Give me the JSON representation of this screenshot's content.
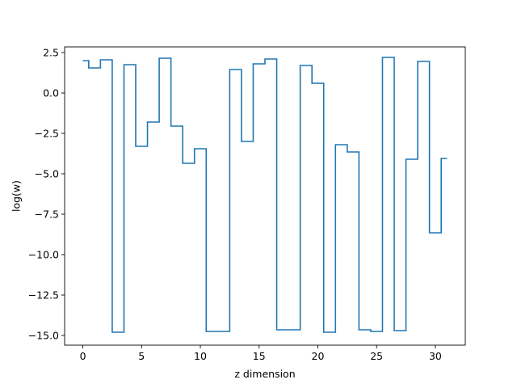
{
  "chart_data": {
    "type": "line",
    "drawstyle": "steps-mid",
    "title": "",
    "xlabel": "z dimension",
    "ylabel": "log(w)",
    "xlim": [
      -1.55,
      32.55
    ],
    "ylim": [
      -15.6,
      2.85
    ],
    "xticks": [
      0,
      5,
      10,
      15,
      20,
      25,
      30
    ],
    "xtick_labels": [
      "0",
      "5",
      "10",
      "15",
      "20",
      "25",
      "30"
    ],
    "yticks": [
      2.5,
      0.0,
      -2.5,
      -5.0,
      -7.5,
      -10.0,
      -12.5,
      -15.0
    ],
    "ytick_labels": [
      "2.5",
      "0.0",
      "−2.5",
      "−5.0",
      "−7.5",
      "−10.0",
      "−12.5",
      "−15.0"
    ],
    "grid": false,
    "legend": false,
    "series": [
      {
        "color": "#1f77b4",
        "x": [
          0,
          1,
          2,
          3,
          4,
          5,
          6,
          7,
          8,
          9,
          10,
          11,
          12,
          13,
          14,
          15,
          16,
          17,
          18,
          19,
          20,
          21,
          22,
          23,
          24,
          25,
          26,
          27,
          28,
          29,
          30,
          31
        ],
        "values": [
          2.0,
          1.55,
          2.05,
          -14.8,
          1.75,
          -3.3,
          -1.8,
          2.15,
          -2.05,
          -4.35,
          -3.45,
          -14.75,
          -14.75,
          1.45,
          -3.0,
          1.8,
          2.1,
          -14.65,
          -14.65,
          1.7,
          0.6,
          -14.8,
          -3.2,
          -3.65,
          -14.65,
          -14.75,
          2.2,
          -14.7,
          -4.1,
          1.95,
          -8.65,
          -4.05
        ]
      }
    ]
  }
}
